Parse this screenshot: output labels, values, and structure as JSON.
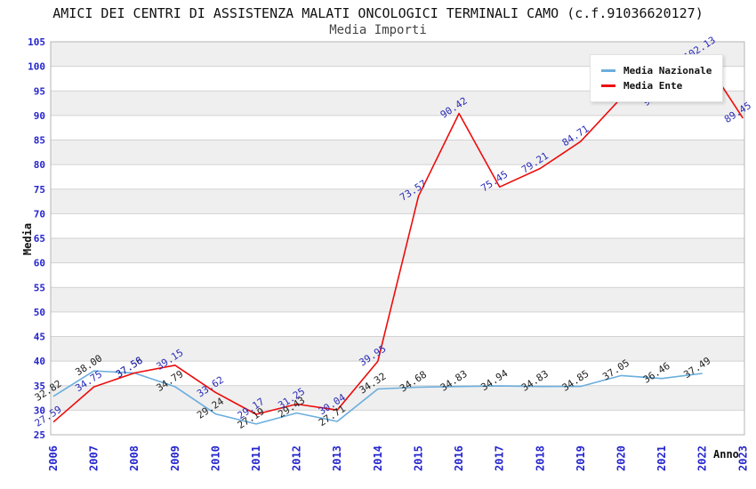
{
  "header": {
    "title": "AMICI DEI CENTRI DI ASSISTENZA MALATI ONCOLOGICI TERMINALI CAMO (c.f.91036620127)",
    "subtitle": "Media Importi"
  },
  "axes": {
    "y_label": "Media",
    "x_label": "Anno",
    "y_ticks": [
      25,
      30,
      35,
      40,
      45,
      50,
      55,
      60,
      65,
      70,
      75,
      80,
      85,
      90,
      95,
      100,
      105
    ],
    "x_categories": [
      "2006",
      "2007",
      "2008",
      "2009",
      "2010",
      "2011",
      "2012",
      "2013",
      "2014",
      "2015",
      "2016",
      "2017",
      "2018",
      "2019",
      "2020",
      "2021",
      "2022",
      "2023"
    ]
  },
  "legend": {
    "items": [
      {
        "label": "Media Nazionale",
        "color": "#6aaede"
      },
      {
        "label": "Media Ente",
        "color": "#ee0b0b"
      }
    ]
  },
  "chart_data": {
    "type": "line",
    "title": "Media Importi",
    "xlabel": "Anno",
    "ylabel": "Media",
    "ylim": [
      25,
      105
    ],
    "ytick_step": 5,
    "grid": "horizontal-bands",
    "legend_position": "top-right-inside",
    "x": [
      "2006",
      "2007",
      "2008",
      "2009",
      "2010",
      "2011",
      "2012",
      "2013",
      "2014",
      "2015",
      "2016",
      "2017",
      "2018",
      "2019",
      "2020",
      "2021",
      "2022",
      "2023"
    ],
    "series": [
      {
        "name": "Media Nazionale",
        "color": "#6aaede",
        "label_color": "#1f1f1f",
        "values": [
          32.82,
          38.0,
          37.56,
          34.79,
          29.24,
          27.19,
          29.43,
          27.71,
          34.32,
          34.68,
          34.83,
          34.94,
          34.83,
          34.85,
          37.05,
          36.46,
          37.49,
          null
        ]
      },
      {
        "name": "Media Ente",
        "color": "#ee0b0b",
        "label_color": "#2a2ab8",
        "values": [
          27.59,
          34.75,
          37.58,
          39.15,
          33.62,
          29.17,
          31.25,
          30.04,
          39.95,
          73.57,
          90.42,
          75.45,
          79.21,
          84.71,
          93.6,
          92.9,
          102.13,
          89.45
        ]
      }
    ],
    "notes": "Labels of Media Ente for 2020 and 2021 are partially hidden behind the legend box in the source image"
  },
  "style": {
    "band_color": "#efefef",
    "gridline_color": "#d2d2d2",
    "border_color": "#b4b4b4",
    "tick_label_color": "#2525cd",
    "background": "#ffffff"
  }
}
